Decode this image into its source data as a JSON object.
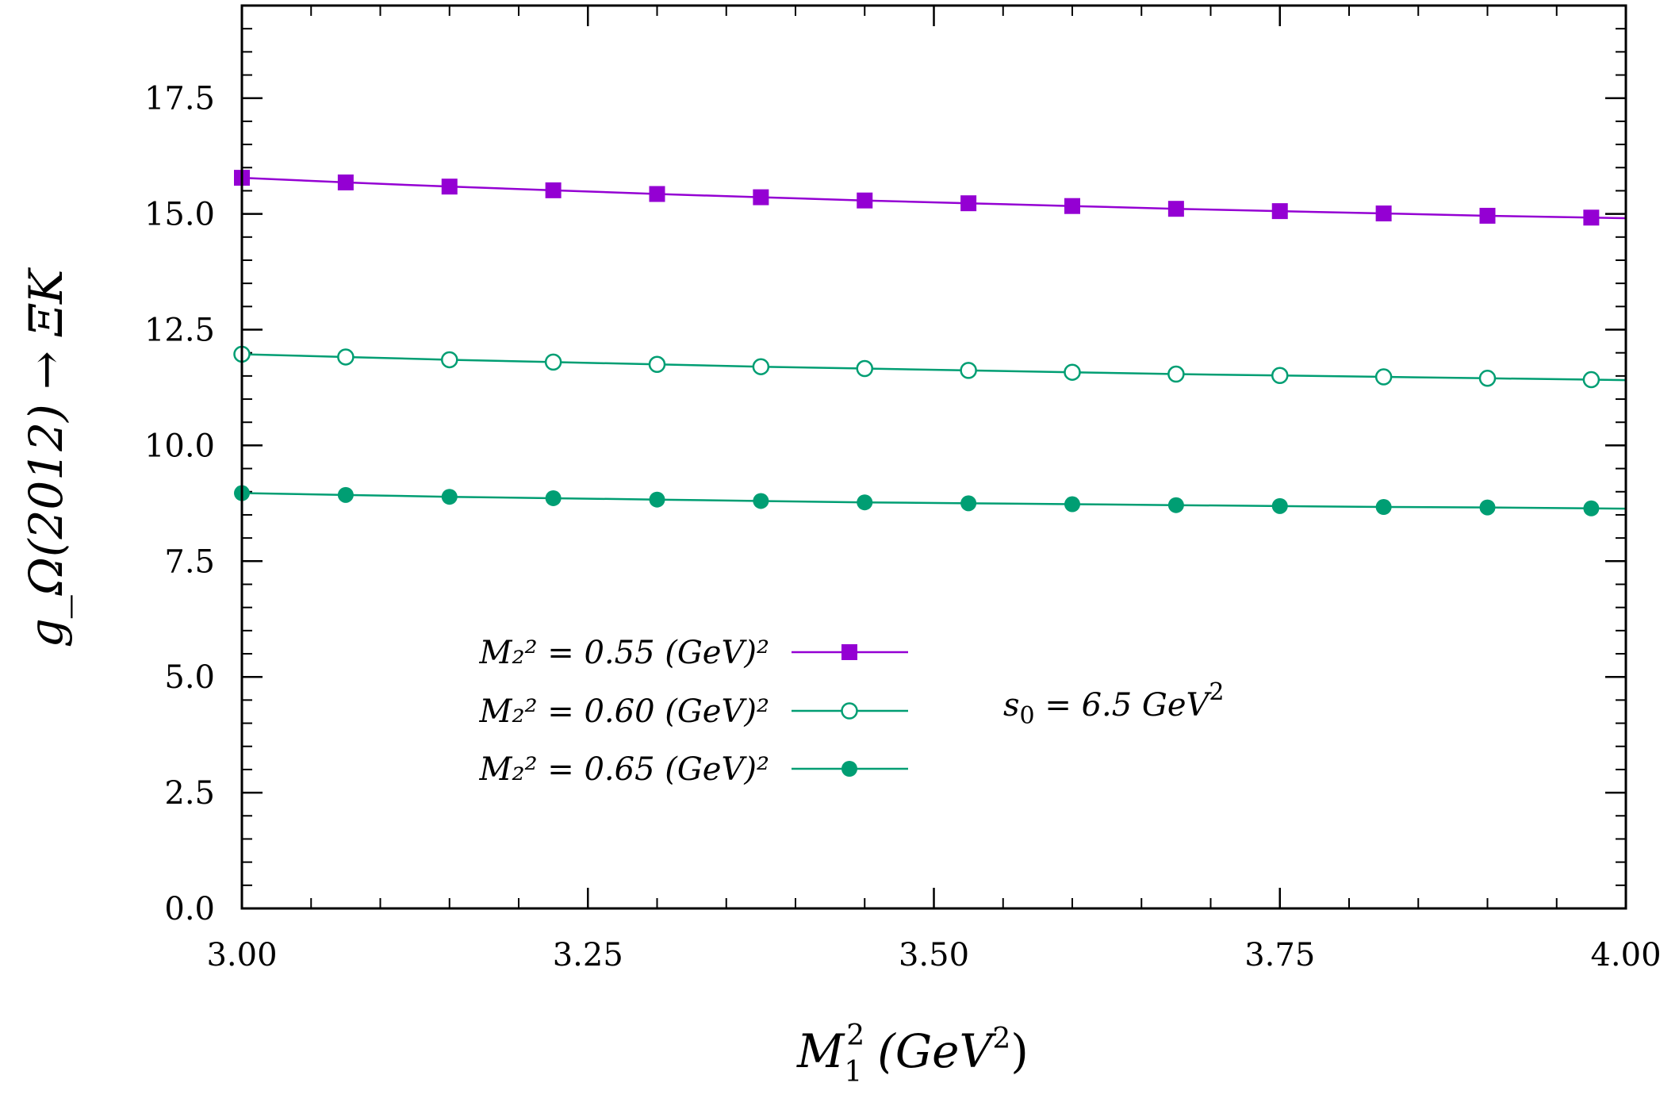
{
  "chart_data": {
    "type": "line",
    "title": "",
    "xlabel": "M_1^2 (GeV^2)",
    "ylabel": "g_Ω(2012) → ΞK",
    "xlim": [
      3.0,
      4.0
    ],
    "ylim": [
      0.0,
      19.5
    ],
    "x_ticks": [
      3.0,
      3.25,
      3.5,
      3.75,
      4.0
    ],
    "x_tick_labels": [
      "3.00",
      "3.25",
      "3.50",
      "3.75",
      "4.00"
    ],
    "x_minor_step": 0.05,
    "y_ticks": [
      0.0,
      2.5,
      5.0,
      7.5,
      10.0,
      12.5,
      15.0,
      17.5
    ],
    "y_tick_labels": [
      "0.0",
      "2.5",
      "5.0",
      "7.5",
      "10.0",
      "12.5",
      "15.0",
      "17.5"
    ],
    "y_minor_step": 0.5,
    "grid": false,
    "legend_position": "lower-left",
    "x": [
      3.0,
      3.075,
      3.15,
      3.225,
      3.3,
      3.375,
      3.45,
      3.525,
      3.6,
      3.675,
      3.75,
      3.825,
      3.9,
      3.975
    ],
    "series": [
      {
        "name": "M_2^2 = 0.55 (GeV)^2",
        "legend_label": "M₂² = 0.55 (GeV)²",
        "color": "#9400d3",
        "marker": "filled-square",
        "values": [
          15.78,
          15.68,
          15.59,
          15.51,
          15.43,
          15.36,
          15.29,
          15.23,
          15.17,
          15.11,
          15.06,
          15.01,
          14.96,
          14.92
        ]
      },
      {
        "name": "M_2^2 = 0.60 (GeV)^2",
        "legend_label": "M₂² = 0.60 (GeV)²",
        "color": "#009e73",
        "marker": "open-circle",
        "values": [
          11.97,
          11.91,
          11.85,
          11.8,
          11.75,
          11.7,
          11.66,
          11.62,
          11.58,
          11.54,
          11.51,
          11.48,
          11.45,
          11.42
        ]
      },
      {
        "name": "M_2^2 = 0.65 (GeV)^2",
        "legend_label": "M₂² = 0.65 (GeV)²",
        "color": "#009e73",
        "marker": "filled-circle",
        "values": [
          8.97,
          8.93,
          8.89,
          8.86,
          8.83,
          8.8,
          8.77,
          8.75,
          8.73,
          8.71,
          8.69,
          8.67,
          8.66,
          8.64
        ]
      }
    ],
    "annotations": [
      {
        "text": "s₀ = 6.5 GeV²"
      }
    ]
  },
  "labels": {
    "y_axis_title": "g_Ω(2012) → ΞK",
    "x_axis_title_main": "M",
    "x_axis_title_sub": "1",
    "x_axis_title_sup": "2",
    "x_axis_title_rest": "(GeV",
    "x_axis_title_rest_sup": "2",
    "x_axis_title_close": ")",
    "annotation_s0": "s",
    "annotation_s0_sub": "0",
    "annotation_s0_rest": " = 6.5 GeV",
    "annotation_s0_sup": "2"
  }
}
